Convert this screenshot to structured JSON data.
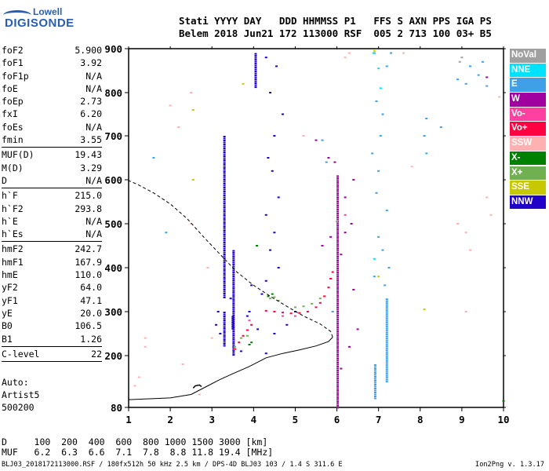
{
  "logo": {
    "line1": "Lowell",
    "line2": "DIGISONDE"
  },
  "header": {
    "line1": "Stati YYYY DAY   DDD HHMMSS P1   FFS S AXN PPS IGA PS",
    "line2": "Belem 2018 Jun21 172 113000 RSF  005 2 713 100 03+ B5"
  },
  "params": [
    {
      "label": "foF2",
      "value": "5.900"
    },
    {
      "label": "foF1",
      "value": "3.92"
    },
    {
      "label": "foF1p",
      "value": "N/A"
    },
    {
      "label": "foE",
      "value": "N/A"
    },
    {
      "label": "foEp",
      "value": "2.73"
    },
    {
      "label": "fxI",
      "value": "6.20"
    },
    {
      "label": "foEs",
      "value": "N/A"
    },
    {
      "label": "fmin",
      "value": "3.55",
      "sep_after": true
    },
    {
      "label": "MUF(D)",
      "value": "19.43"
    },
    {
      "label": "M(D)",
      "value": "3.29"
    },
    {
      "label": "D",
      "value": "N/A",
      "sep_after": true
    },
    {
      "label": "h`F",
      "value": "215.0"
    },
    {
      "label": "h`F2",
      "value": "293.8"
    },
    {
      "label": "h`E",
      "value": "N/A"
    },
    {
      "label": "h`Es",
      "value": "N/A",
      "sep_after": true
    },
    {
      "label": "hmF2",
      "value": "242.7"
    },
    {
      "label": "hmF1",
      "value": "167.9"
    },
    {
      "label": "hmE",
      "value": "110.0"
    },
    {
      "label": "yF2",
      "value": "64.0"
    },
    {
      "label": "yF1",
      "value": "47.1"
    },
    {
      "label": "yE",
      "value": "20.0"
    },
    {
      "label": "B0",
      "value": "106.5"
    },
    {
      "label": "B1",
      "value": "1.26",
      "sep_after": true
    },
    {
      "label": "C-level",
      "value": "22",
      "sep_after": true
    }
  ],
  "auto": {
    "line1": "Auto:",
    "line2": "Artist5",
    "line3": "500200"
  },
  "legend": [
    {
      "label": "NoVal",
      "color": "#a0a0a0"
    },
    {
      "label": "NNE",
      "color": "#00e0ff"
    },
    {
      "label": "E",
      "color": "#3fa0e8"
    },
    {
      "label": "W",
      "color": "#a000a0"
    },
    {
      "label": "Vo-",
      "color": "#ff40a0"
    },
    {
      "label": "Vo+",
      "color": "#ff0040"
    },
    {
      "label": "SSW",
      "color": "#ffb0b0"
    },
    {
      "label": "X-",
      "color": "#008000"
    },
    {
      "label": "X+",
      "color": "#70b050"
    },
    {
      "label": "SSE",
      "color": "#c8c800"
    },
    {
      "label": "NNW",
      "color": "#2000c8"
    }
  ],
  "dtable": {
    "line1": "D     100  200  400  600  800 1000 1500 3000 [km]",
    "line2": "MUF   6.2  6.3  6.6  7.1  7.8  8.8 11.8 19.4 [MHz]"
  },
  "footer": "BLJ03_2018172113000.RSF / 180fx512h 50 kHz 2.5 km / DPS-4D BLJ03 103 / 1.4 S 311.6 E",
  "version": "Ion2Png v. 1.3.17",
  "chart_data": {
    "type": "scatter",
    "title": "",
    "xlabel": "",
    "ylabel": "",
    "xlim": [
      1,
      10
    ],
    "ylim": [
      80,
      900
    ],
    "x_ticks": [
      1,
      2,
      3,
      4,
      5,
      6,
      7,
      8,
      9,
      10
    ],
    "y_ticks": [
      80,
      200,
      300,
      400,
      500,
      600,
      700,
      800,
      900
    ],
    "grid": false,
    "series": [
      {
        "name": "NNW",
        "color": "#2000c8",
        "segments": [
          [
            3.3,
            220,
            300
          ],
          [
            3.3,
            330,
            700
          ],
          [
            3.52,
            200,
            440
          ],
          [
            4.05,
            810,
            890
          ],
          [
            3.5,
            260,
            290
          ]
        ],
        "points": [
          [
            4.3,
            880
          ],
          [
            4.55,
            860
          ],
          [
            4.4,
            800
          ],
          [
            4.7,
            750
          ],
          [
            4.5,
            700
          ],
          [
            4.35,
            650
          ],
          [
            4.45,
            620
          ],
          [
            4.6,
            560
          ],
          [
            4.3,
            520
          ],
          [
            4.5,
            480
          ],
          [
            4.4,
            440
          ],
          [
            4.6,
            400
          ],
          [
            4.3,
            370
          ],
          [
            4.2,
            340
          ],
          [
            3.95,
            360
          ],
          [
            3.85,
            290
          ],
          [
            3.15,
            300
          ],
          [
            3.1,
            270
          ],
          [
            3.45,
            330
          ],
          [
            3.2,
            250
          ],
          [
            4.5,
            250
          ],
          [
            4.3,
            205
          ],
          [
            4.8,
            270
          ],
          [
            5.0,
            300
          ],
          [
            3.9,
            300
          ],
          [
            4.1,
            260
          ],
          [
            3.7,
            210
          ]
        ]
      },
      {
        "name": "W",
        "color": "#a000a0",
        "segments": [
          [
            6.02,
            80,
            610
          ]
        ],
        "points": [
          [
            5.5,
            690
          ],
          [
            5.8,
            650
          ],
          [
            6.2,
            560
          ],
          [
            6.35,
            500
          ],
          [
            6.1,
            430
          ],
          [
            6.4,
            600
          ],
          [
            5.65,
            450
          ],
          [
            5.85,
            470
          ],
          [
            6.4,
            350
          ],
          [
            6.5,
            260
          ],
          [
            6.3,
            220
          ],
          [
            6.1,
            170
          ],
          [
            5.95,
            640
          ],
          [
            9.6,
            835
          ],
          [
            6.2,
            480
          ]
        ]
      },
      {
        "name": "Vo+",
        "color": "#ff0040",
        "points": [
          [
            4.3,
            302
          ],
          [
            4.5,
            300
          ],
          [
            4.7,
            298
          ],
          [
            4.9,
            296
          ],
          [
            5.1,
            297
          ],
          [
            5.3,
            300
          ],
          [
            5.5,
            310
          ],
          [
            5.6,
            320
          ],
          [
            5.7,
            335
          ],
          [
            5.8,
            355
          ],
          [
            5.85,
            375
          ],
          [
            5.9,
            390
          ],
          [
            3.55,
            215
          ],
          [
            3.65,
            230
          ],
          [
            3.75,
            245
          ],
          [
            3.85,
            258
          ],
          [
            3.95,
            270
          ]
        ]
      },
      {
        "name": "X+",
        "color": "#70b050",
        "points": [
          [
            4.4,
            330
          ],
          [
            4.5,
            333
          ],
          [
            4.6,
            325
          ],
          [
            5.0,
            310
          ],
          [
            5.2,
            312
          ],
          [
            5.4,
            318
          ],
          [
            5.6,
            330
          ],
          [
            3.55,
            220
          ],
          [
            3.7,
            240
          ],
          [
            3.85,
            245
          ]
        ]
      },
      {
        "name": "X-",
        "color": "#008000",
        "points": [
          [
            4.45,
            340
          ],
          [
            4.35,
            335
          ],
          [
            3.9,
            225
          ],
          [
            3.95,
            230
          ],
          [
            10.0,
            95
          ],
          [
            4.08,
            450
          ]
        ]
      },
      {
        "name": "E",
        "color": "#3fa0e8",
        "segments": [
          [
            7.2,
            140,
            330
          ],
          [
            6.92,
            100,
            180
          ]
        ],
        "points": [
          [
            7.3,
            890
          ],
          [
            7.2,
            860
          ],
          [
            6.95,
            780
          ],
          [
            7.1,
            750
          ],
          [
            7.05,
            700
          ],
          [
            6.85,
            660
          ],
          [
            7.0,
            620
          ],
          [
            6.95,
            570
          ],
          [
            7.2,
            530
          ],
          [
            7.0,
            470
          ],
          [
            7.1,
            440
          ],
          [
            7.25,
            400
          ],
          [
            6.9,
            380
          ],
          [
            7.15,
            360
          ],
          [
            8.15,
            740
          ],
          [
            8.1,
            700
          ],
          [
            8.15,
            660
          ],
          [
            8.5,
            720
          ],
          [
            9.2,
            860
          ],
          [
            9.4,
            840
          ],
          [
            9.1,
            820
          ],
          [
            8.9,
            830
          ],
          [
            9.5,
            870
          ],
          [
            9.6,
            815
          ],
          [
            5.9,
            300
          ],
          [
            6.9,
            890
          ],
          [
            5.65,
            690
          ],
          [
            5.75,
            640
          ],
          [
            1.6,
            650
          ],
          [
            1.9,
            480
          ]
        ]
      },
      {
        "name": "NNE",
        "color": "#00e0ff",
        "points": [
          [
            6.88,
            890
          ],
          [
            7.0,
            855
          ],
          [
            6.9,
            420
          ],
          [
            7.05,
            810
          ]
        ]
      },
      {
        "name": "Vo-",
        "color": "#ff40a0",
        "points": [
          [
            5.0,
            290
          ],
          [
            4.7,
            290
          ],
          [
            3.9,
            280
          ],
          [
            6.2,
            520
          ]
        ]
      },
      {
        "name": "SSW",
        "color": "#ffb0b0",
        "points": [
          [
            1.4,
            240
          ],
          [
            1.4,
            220
          ],
          [
            1.15,
            130
          ],
          [
            1.25,
            150
          ],
          [
            2.0,
            770
          ],
          [
            2.5,
            800
          ],
          [
            2.5,
            500
          ],
          [
            2.2,
            720
          ],
          [
            2.9,
            400
          ],
          [
            3.0,
            240
          ],
          [
            2.3,
            180
          ],
          [
            2.7,
            110
          ],
          [
            6.2,
            880
          ],
          [
            8.9,
            500
          ],
          [
            9.1,
            480
          ],
          [
            9.1,
            300
          ],
          [
            9.6,
            560
          ],
          [
            9.7,
            520
          ],
          [
            9.2,
            440
          ],
          [
            9.9,
            790
          ],
          [
            7.6,
            890
          ],
          [
            6.3,
            890
          ],
          [
            7.8,
            630
          ],
          [
            5.2,
            700
          ]
        ]
      },
      {
        "name": "SSE",
        "color": "#c8c800",
        "points": [
          [
            2.55,
            760
          ],
          [
            6.9,
            895
          ],
          [
            3.75,
            820
          ],
          [
            8.1,
            305
          ],
          [
            7.0,
            380
          ],
          [
            2.55,
            600
          ]
        ]
      },
      {
        "name": "NoVal",
        "color": "#a0a0a0",
        "points": [
          [
            9.0,
            880
          ],
          [
            8.95,
            870
          ],
          [
            6.0,
            505
          ]
        ]
      }
    ],
    "profile_solid": [
      [
        1.0,
        98
      ],
      [
        1.5,
        100
      ],
      [
        2.0,
        102
      ],
      [
        2.5,
        110
      ],
      [
        2.7,
        120
      ],
      [
        2.9,
        130
      ],
      [
        3.2,
        145
      ],
      [
        3.5,
        158
      ],
      [
        3.9,
        175
      ],
      [
        4.3,
        195
      ],
      [
        4.7,
        205
      ],
      [
        5.1,
        213
      ],
      [
        5.5,
        222
      ],
      [
        5.8,
        232
      ],
      [
        5.9,
        242
      ]
    ],
    "profile_dashed": [
      [
        5.9,
        242
      ],
      [
        5.85,
        255
      ],
      [
        5.6,
        272
      ],
      [
        5.2,
        290
      ],
      [
        4.8,
        312
      ],
      [
        4.4,
        335
      ],
      [
        4.0,
        360
      ],
      [
        3.6,
        390
      ],
      [
        3.2,
        430
      ],
      [
        2.8,
        470
      ],
      [
        2.4,
        512
      ],
      [
        2.0,
        545
      ],
      [
        1.6,
        570
      ],
      [
        1.2,
        590
      ],
      [
        1.0,
        598
      ]
    ],
    "trace_black": [
      [
        2.55,
        125
      ],
      [
        2.6,
        130
      ],
      [
        2.7,
        132
      ],
      [
        2.75,
        128
      ]
    ]
  }
}
